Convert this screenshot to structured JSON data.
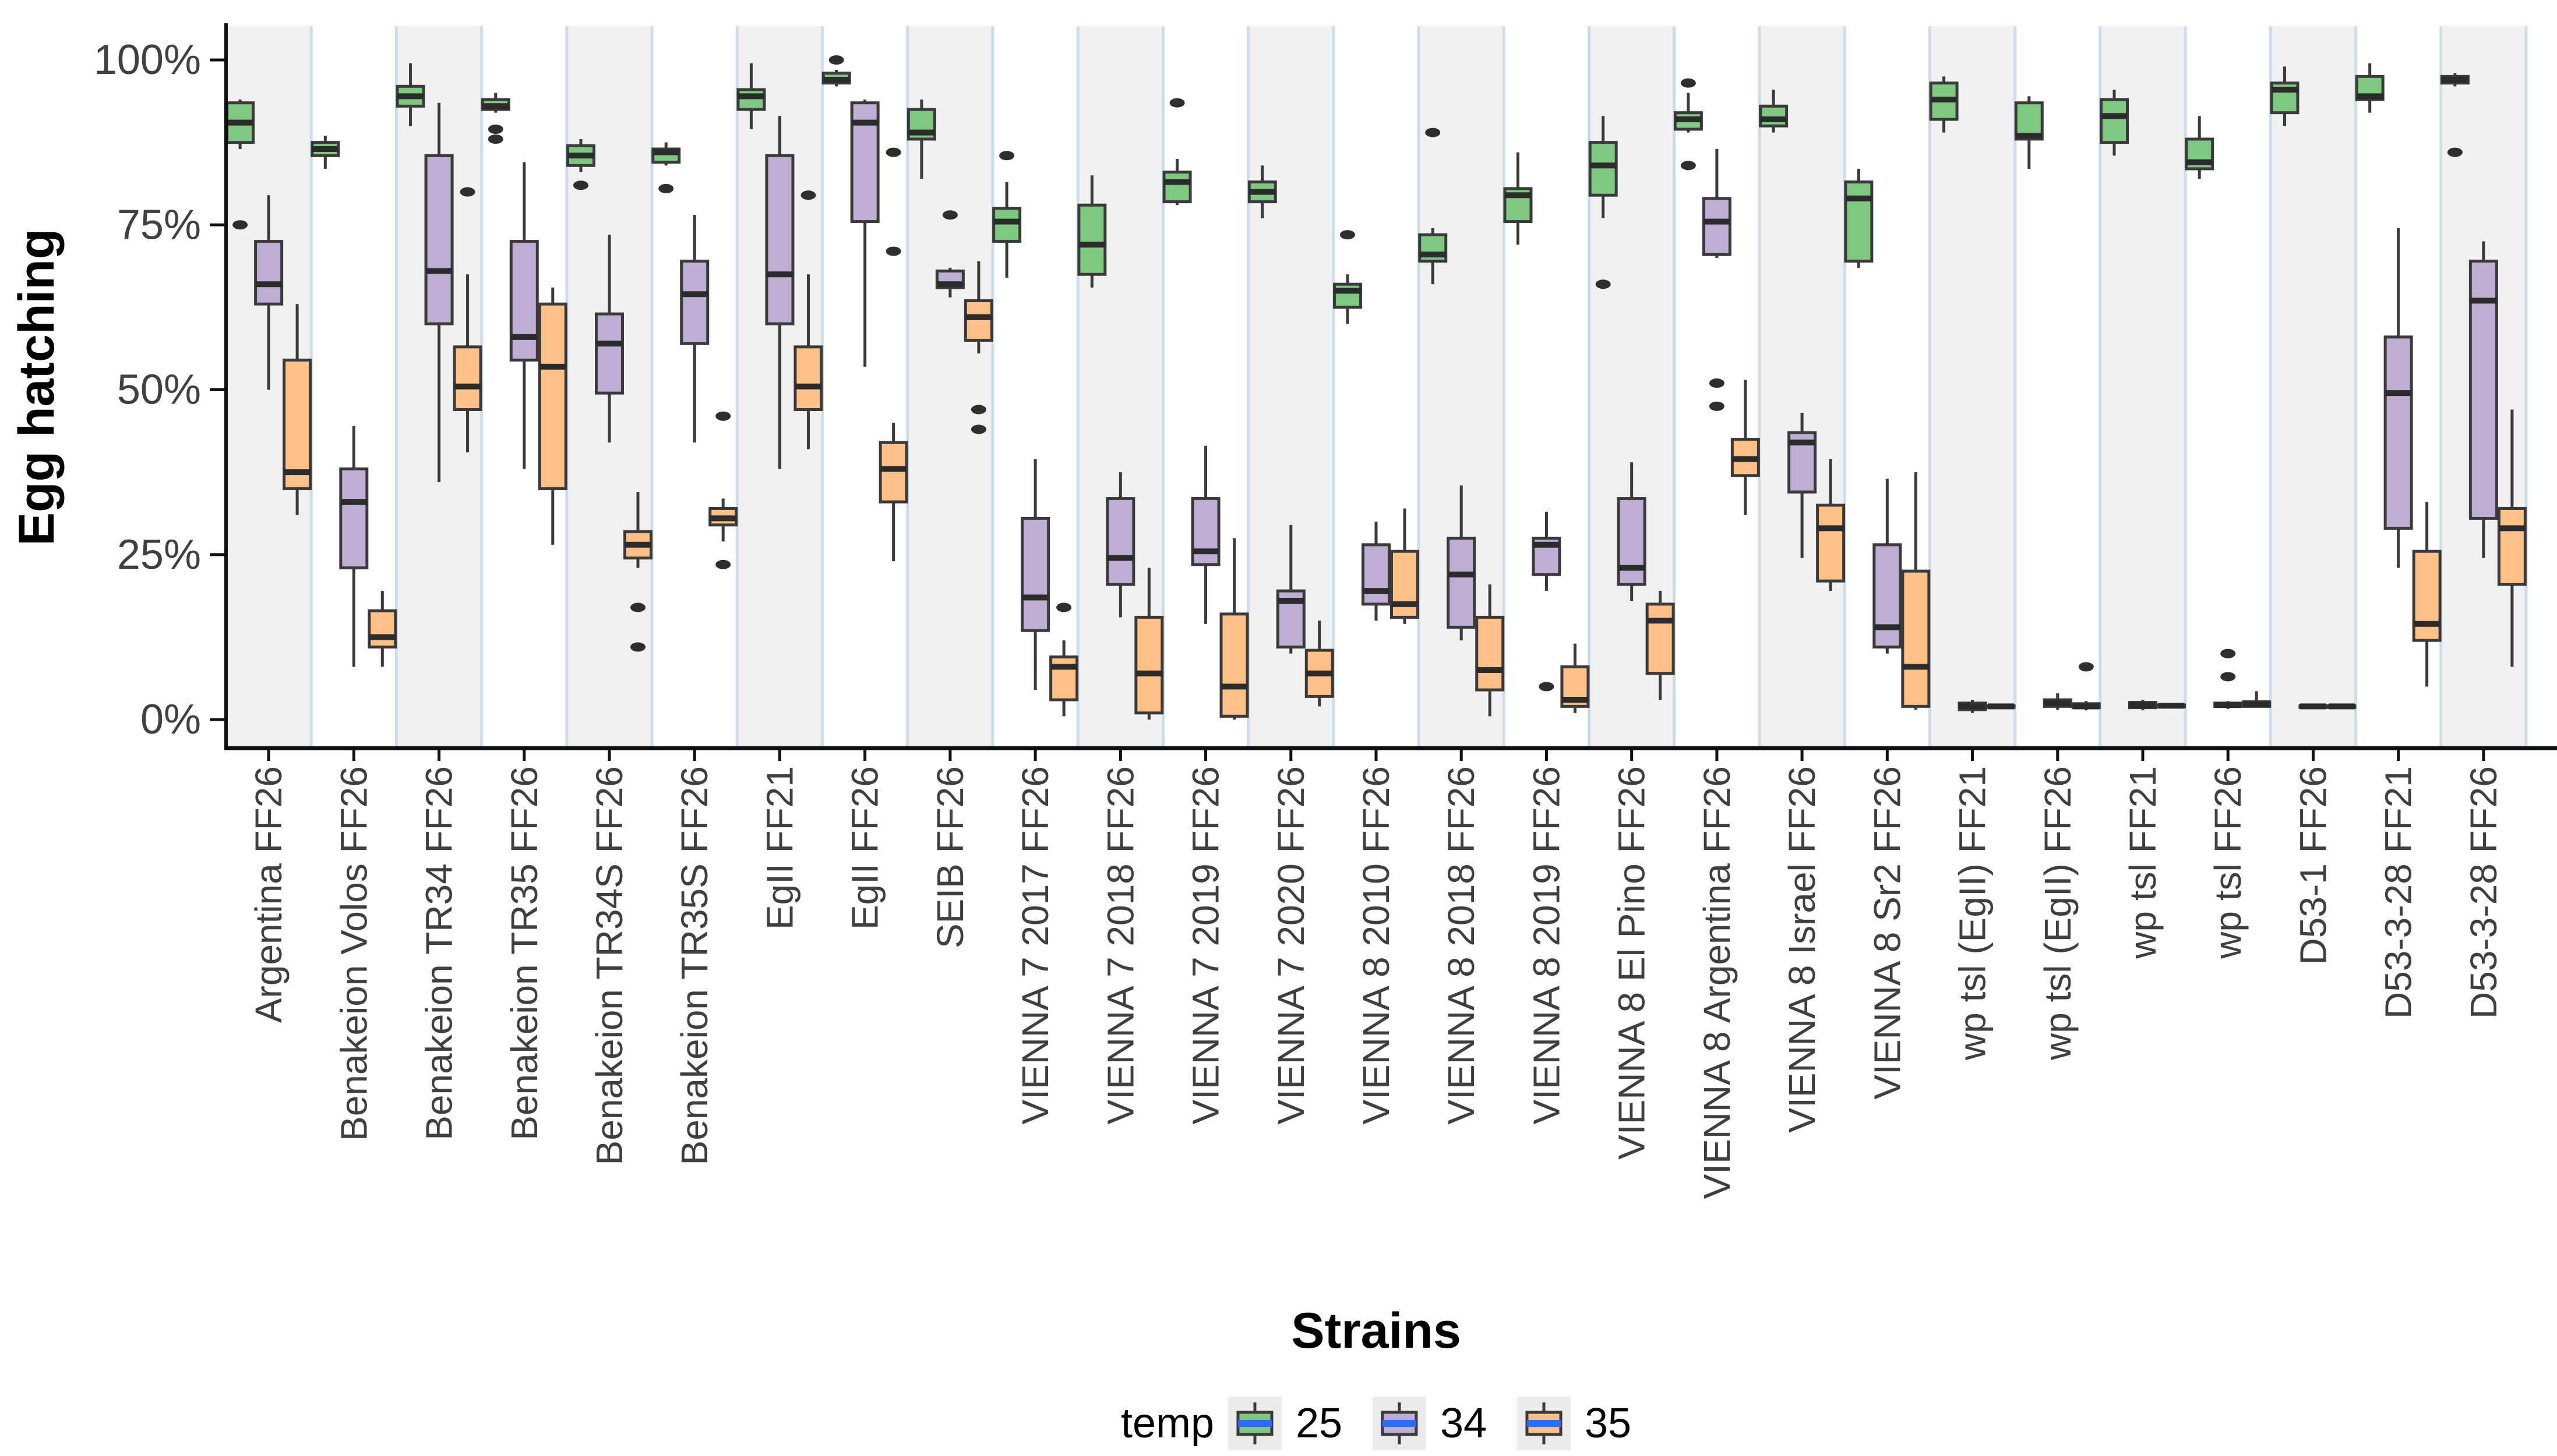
{
  "y_axis": {
    "title": "Egg hatching",
    "tick_values": [
      0,
      25,
      50,
      75,
      100
    ],
    "tick_labels": [
      "0%",
      "25%",
      "50%",
      "75%",
      "100%"
    ],
    "range": [
      0,
      100
    ]
  },
  "x_axis": {
    "title": "Strains"
  },
  "legend": {
    "title": "temp",
    "entries": [
      {
        "label": "25",
        "color": "#7ec97f"
      },
      {
        "label": "34",
        "color": "#beaed4"
      },
      {
        "label": "35",
        "color": "#fdc086"
      }
    ],
    "key_bg": "#ebebeb",
    "key_median_color": "#2f6bf0",
    "position": "bottom"
  },
  "style": {
    "band_fill": "#f1f1f1",
    "band_edge": "#ccddee",
    "box_stroke": "#3a3a3a",
    "median_color": "#2b2b2b",
    "outlier_color": "#2e2e2e",
    "axis_color": "#111111"
  },
  "chart_data": {
    "type": "boxplot",
    "group_label": "temp",
    "series_order": [
      "25",
      "34",
      "35"
    ],
    "series_colors": {
      "25": "#7ec97f",
      "34": "#beaed4",
      "35": "#fdc086"
    },
    "categories": [
      "Argentina FF26",
      "Benakeion Volos FF26",
      "Benakeion TR34 FF26",
      "Benakeion TR35 FF26",
      "Benakeion TR34S FF26",
      "Benakeion TR35S FF26",
      "EgII FF21",
      "EgII FF26",
      "SEIB FF26",
      "VIENNA 7 2017 FF26",
      "VIENNA 7 2018 FF26",
      "VIENNA 7 2019 FF26",
      "VIENNA 7 2020 FF26",
      "VIENNA 8 2010 FF26",
      "VIENNA 8 2018 FF26",
      "VIENNA 8 2019 FF26",
      "VIENNA 8 El Pino FF26",
      "VIENNA 8 Argentina FF26",
      "VIENNA 8 Israel FF26",
      "VIENNA 8 Sr2 FF26",
      "wp tsl (EgII) FF21",
      "wp tsl (EgII) FF26",
      "wp tsl FF21",
      "wp tsl FF26",
      "D53-1 FF26",
      "D53-3-28 FF21",
      "D53-3-28 FF26"
    ],
    "stats_format": [
      "whisker_low",
      "q1",
      "median",
      "q3",
      "whisker_high",
      "outliers"
    ],
    "stats": {
      "25": [
        [
          86.5,
          87.5,
          90.5,
          93.5,
          94,
          [
            75
          ]
        ],
        [
          83.5,
          85.5,
          86.5,
          87.5,
          88.5,
          []
        ],
        [
          90,
          93,
          94.5,
          96,
          99.5,
          []
        ],
        [
          92,
          92.5,
          93,
          94,
          95,
          [
            89.5,
            88
          ]
        ],
        [
          83,
          84,
          85.5,
          87,
          88,
          [
            81
          ]
        ],
        [
          84,
          84.5,
          86,
          86.5,
          87.5,
          [
            80.5
          ]
        ],
        [
          89.5,
          92.5,
          94.5,
          95.5,
          99.5,
          []
        ],
        [
          96,
          96.5,
          97,
          98,
          98.5,
          [
            100
          ]
        ],
        [
          82,
          88,
          89,
          92.5,
          94,
          []
        ],
        [
          67,
          72.5,
          75.5,
          77.5,
          81.5,
          [
            85.5
          ]
        ],
        [
          65.5,
          67.5,
          72,
          78,
          82.5,
          []
        ],
        [
          78,
          78.5,
          81.5,
          83,
          85,
          [
            93.5
          ]
        ],
        [
          76,
          78.5,
          80,
          81.5,
          84,
          []
        ],
        [
          60,
          62.5,
          65,
          66,
          67.5,
          [
            73.5
          ]
        ],
        [
          66,
          69.5,
          70.5,
          73.5,
          74.5,
          [
            89
          ]
        ],
        [
          72,
          75.5,
          79.5,
          80.5,
          86,
          []
        ],
        [
          76,
          79.5,
          84,
          87.5,
          91.5,
          [
            66
          ]
        ],
        [
          89,
          89.5,
          91,
          92,
          95,
          [
            96.5,
            84
          ]
        ],
        [
          89,
          90,
          91,
          93,
          95.5,
          []
        ],
        [
          68.5,
          69.5,
          79,
          81.5,
          83.5,
          []
        ],
        [
          89,
          91,
          94,
          96.5,
          97.5,
          []
        ],
        [
          83.5,
          88,
          88.5,
          93.5,
          94.5,
          []
        ],
        [
          85.5,
          87.5,
          91.5,
          94,
          95.5,
          []
        ],
        [
          82,
          83.5,
          84.5,
          88,
          91.5,
          []
        ],
        [
          90,
          92,
          95.5,
          96.5,
          99,
          []
        ],
        [
          92,
          94,
          94.5,
          97.5,
          99.5,
          []
        ],
        [
          96,
          96.5,
          97,
          97.5,
          98,
          [
            86
          ]
        ]
      ],
      "34": [
        [
          50,
          63,
          66,
          72.5,
          79.5,
          []
        ],
        [
          8,
          23,
          33,
          38,
          44.5,
          []
        ],
        [
          36,
          60,
          68,
          85.5,
          93.5,
          []
        ],
        [
          38,
          54.5,
          58,
          72.5,
          84.5,
          []
        ],
        [
          42,
          49.5,
          57,
          61.5,
          73.5,
          []
        ],
        [
          42,
          57,
          64.5,
          69.5,
          76.5,
          []
        ],
        [
          38,
          60,
          67.5,
          85.5,
          91.5,
          []
        ],
        [
          53.5,
          75.5,
          90.5,
          93.5,
          94,
          []
        ],
        [
          64,
          65.5,
          66,
          68,
          68.5,
          [
            76.5
          ]
        ],
        [
          4.5,
          13.5,
          18.5,
          30.5,
          39.5,
          []
        ],
        [
          15.5,
          20.5,
          24.5,
          33.5,
          37.5,
          []
        ],
        [
          14.5,
          23.5,
          25.5,
          33.5,
          41.5,
          []
        ],
        [
          10,
          11,
          18,
          19.5,
          29.5,
          []
        ],
        [
          15,
          17.5,
          19.5,
          26.5,
          30,
          []
        ],
        [
          12,
          14,
          22,
          27.5,
          35.5,
          []
        ],
        [
          19.5,
          22,
          26.5,
          27.5,
          31.5,
          [
            5
          ]
        ],
        [
          18,
          20.5,
          23,
          33.5,
          39,
          []
        ],
        [
          70,
          70.5,
          75.5,
          79,
          86.5,
          [
            51,
            47.5
          ]
        ],
        [
          24.5,
          34.5,
          42,
          43.5,
          46.5,
          []
        ],
        [
          10,
          11,
          14,
          26.5,
          36.5,
          []
        ],
        [
          1,
          1.5,
          2,
          2.5,
          3,
          []
        ],
        [
          1.5,
          2,
          2.5,
          3,
          4,
          []
        ],
        [
          1.4,
          1.8,
          2.2,
          2.6,
          3,
          []
        ],
        [
          1.6,
          2,
          2.2,
          2.5,
          2.8,
          [
            10,
            6.5
          ]
        ],
        [
          1.8,
          1.9,
          2,
          2.1,
          2.2,
          []
        ],
        [
          23,
          29,
          49.5,
          58,
          74.5,
          []
        ],
        [
          24.5,
          30.5,
          63.5,
          69.5,
          72.5,
          []
        ]
      ],
      "35": [
        [
          31,
          35,
          37.5,
          54.5,
          63,
          []
        ],
        [
          8,
          11,
          12.5,
          16.5,
          19.5,
          []
        ],
        [
          40.5,
          47,
          50.5,
          56.5,
          67.5,
          [
            80
          ]
        ],
        [
          26.5,
          35,
          53.5,
          63,
          65.5,
          []
        ],
        [
          23,
          24.5,
          26.5,
          28.5,
          34.5,
          [
            17,
            11
          ]
        ],
        [
          27,
          29.5,
          30.5,
          32,
          33.5,
          [
            46,
            23.5
          ]
        ],
        [
          41,
          47,
          50.5,
          56.5,
          67.5,
          [
            79.5
          ]
        ],
        [
          24,
          33,
          38,
          42,
          45,
          [
            86,
            71
          ]
        ],
        [
          55.5,
          57.5,
          61,
          63.5,
          69.5,
          [
            47,
            44
          ]
        ],
        [
          0.5,
          3,
          8,
          9.5,
          12,
          [
            17
          ]
        ],
        [
          0,
          1,
          7,
          15.5,
          23,
          []
        ],
        [
          0,
          0.5,
          5,
          16,
          27.5,
          []
        ],
        [
          2,
          3.5,
          7,
          10.5,
          15,
          []
        ],
        [
          14.5,
          15.5,
          17.5,
          25.5,
          32,
          []
        ],
        [
          0.5,
          4.5,
          7.5,
          15.5,
          20.5,
          []
        ],
        [
          1,
          2,
          3,
          8,
          11.5,
          []
        ],
        [
          3,
          7,
          15,
          17.5,
          19.5,
          []
        ],
        [
          31,
          37,
          39.5,
          42.5,
          51.5,
          []
        ],
        [
          19.5,
          21,
          29,
          32.5,
          39.5,
          []
        ],
        [
          1.5,
          2,
          8,
          22.5,
          37.5,
          []
        ],
        [
          1.8,
          1.9,
          2,
          2.1,
          2.2,
          []
        ],
        [
          1.4,
          1.8,
          2,
          2.4,
          2.8,
          [
            8
          ]
        ],
        [
          1.9,
          2,
          2.1,
          2.2,
          2.3,
          []
        ],
        [
          1.8,
          2,
          2.3,
          2.7,
          4.3,
          []
        ],
        [
          1.8,
          1.9,
          2,
          2.1,
          2.2,
          []
        ],
        [
          5,
          12,
          14.5,
          25.5,
          33,
          []
        ],
        [
          8,
          20.5,
          29,
          32,
          47,
          []
        ]
      ]
    },
    "layout_hints": {
      "alternating_background_bands": true,
      "first_band_shaded": true,
      "legend_position": "bottom",
      "x_labels_rotated_degrees": 90
    }
  }
}
